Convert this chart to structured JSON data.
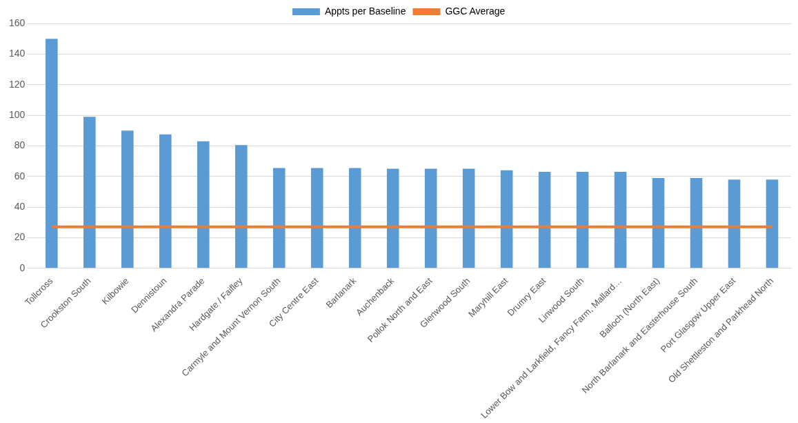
{
  "chart_data": {
    "type": "bar",
    "categories": [
      "Tollcross",
      "Crookston South",
      "Kilbowie",
      "Dennistoun",
      "Alexandra Parade",
      "Hardgate / Faifley",
      "Carmyle and Mount Vernon South",
      "City Centre East",
      "Barlanark",
      "Auchenback",
      "Pollok North and East",
      "Glenwood South",
      "Maryhill East",
      "Drumry East",
      "Linwood South",
      "Lower Bow and Larkfield, Fancy Farm, Mallard…",
      "Balloch (North East)",
      "North Barlanark and Easterhouse South",
      "Port Glasgow Upper East",
      "Old Shettleston and Parkhead North"
    ],
    "series": [
      {
        "name": "Appts per Baseline",
        "color": "#5b9bd5",
        "values": [
          150,
          99,
          90,
          87.5,
          83,
          80.5,
          65.5,
          65.5,
          65.5,
          65,
          65,
          65,
          64,
          63,
          63,
          63,
          59,
          59,
          58,
          58
        ]
      },
      {
        "name": "GGC Average",
        "type": "line",
        "color": "#ed7d31",
        "values": [
          27,
          27,
          27,
          27,
          27,
          27,
          27,
          27,
          27,
          27,
          27,
          27,
          27,
          27,
          27,
          27,
          27,
          27,
          27,
          27
        ]
      }
    ],
    "ylim": [
      0,
      160
    ],
    "yticks": [
      0,
      20,
      40,
      60,
      80,
      100,
      120,
      140,
      160
    ],
    "grid": "y",
    "legend": "top",
    "marker": "none"
  }
}
